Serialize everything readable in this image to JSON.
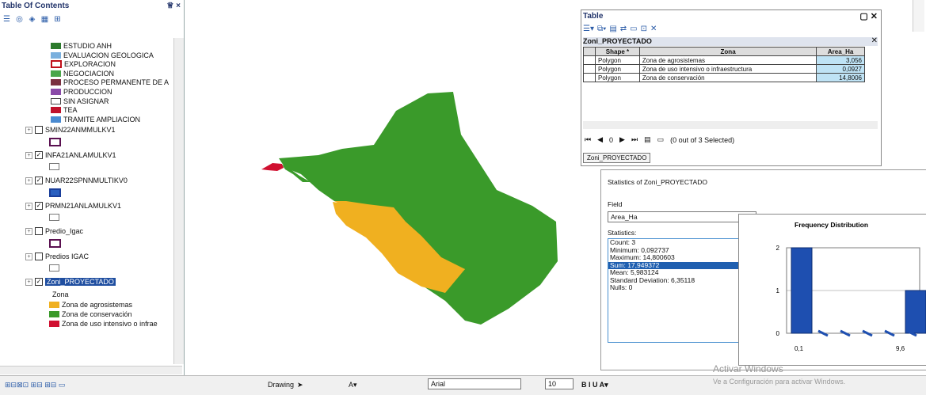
{
  "toc": {
    "title": "Table Of Contents",
    "pin_close": "♕ ×",
    "items": [
      {
        "label": "ESTUDIO ANH",
        "color": "#2c7a2c"
      },
      {
        "label": "EVALUACION GEOLOGICA",
        "color": "#7ab0de"
      },
      {
        "label": "EXPLORACION",
        "color": "outline"
      },
      {
        "label": "NEGOCIACION",
        "color": "#4aa64a"
      },
      {
        "label": "PROCESO PERMANENTE DE A",
        "color": "#7a3040"
      },
      {
        "label": "PRODUCCION",
        "color": "#8a4aa8"
      },
      {
        "label": "SIN ASIGNAR",
        "color": "empty"
      },
      {
        "label": "TEA",
        "color": "#c0102a"
      },
      {
        "label": "TRAMITE AMPLIACION",
        "color": "#4a8ad0"
      }
    ],
    "layers": [
      {
        "label": "SMIN22ANMMULKV1",
        "checked": false
      },
      {
        "label": "INFA21ANLAMULKV1",
        "checked": true
      },
      {
        "label": "NUAR22SPNNMULTIKV0",
        "checked": true
      },
      {
        "label": "PRMN21ANLAMULKV1",
        "checked": true
      },
      {
        "label": "Predio_Igac",
        "checked": false
      },
      {
        "label": "Predios IGAC",
        "checked": false
      },
      {
        "label": "Zoni_PROYECTADO",
        "checked": true
      }
    ],
    "zona_header": "Zona",
    "zona_items": [
      {
        "label": "Zona de agrosistemas",
        "color": "#f0b020"
      },
      {
        "label": "Zona de conservación",
        "color": "#3a9a2a"
      },
      {
        "label": "Zona de uso intensivo o infrae",
        "color": "#d01030"
      }
    ]
  },
  "table": {
    "title": "Table",
    "layer": "Zoni_PROYECTADO",
    "columns": [
      "Shape *",
      "Zona",
      "Area_Ha"
    ],
    "rows": [
      [
        "Polygon",
        "Zona de agrosistemas",
        "3,056"
      ],
      [
        "Polygon",
        "Zona de uso intensivo o infraestructura",
        "0,0927"
      ],
      [
        "Polygon",
        "Zona de conservación",
        "14,8006"
      ]
    ],
    "nav_text": "0",
    "selection": "(0 out of 3 Selected)",
    "tab": "Zoni_PROYECTADO"
  },
  "stats": {
    "title": "Statistics of Zoni_PROYECTADO",
    "field_label": "Field",
    "field_value": "Area_Ha",
    "stats_label": "Statistics:",
    "lines": [
      "Count:  3",
      "Minimum: 0,092737",
      "Maximum: 14,800603",
      "Sum:   17,949372",
      "Mean:  5,983124",
      "Standard Deviation: 6,35118",
      "Nulls:  0"
    ],
    "chart_title": "Frequency Distribution"
  },
  "chart_data": {
    "type": "bar",
    "title": "Frequency Distribution",
    "categories": [
      "0,1",
      "9,6"
    ],
    "values": [
      2,
      1
    ],
    "ylim": [
      0,
      2
    ],
    "yticks": [
      0,
      1,
      2
    ],
    "xticks": [
      "0,1",
      "9,6"
    ],
    "bar_color": "#1e4fb0"
  },
  "bottom": {
    "drawing": "Drawing",
    "font": "Arial",
    "size": "10",
    "watermark1": "Activar Windows",
    "watermark2": "Ve a Configuración para activar Windows."
  },
  "map": {
    "colors": {
      "agro": "#f0b020",
      "cons": "#3a9a2a",
      "urb": "#d01030"
    }
  }
}
